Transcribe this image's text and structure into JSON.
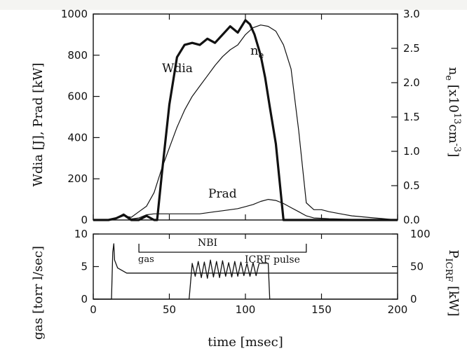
{
  "chart_data": [
    {
      "panel": "upper",
      "type": "line",
      "xlabel": "time [msec]",
      "xlim": [
        0,
        200
      ],
      "xticks": [
        0,
        50,
        100,
        150,
        200
      ],
      "ylabel_left": "Wdia [J],  Prad [kW]",
      "ylim_left": [
        0,
        1000
      ],
      "yticks_left": [
        0,
        200,
        400,
        600,
        800,
        1000
      ],
      "ylabel_right": "ne [x10^13 cm^-3]",
      "ylabel_right_parts": {
        "base": "n",
        "sub": "e",
        "mid": " [x10",
        "sup1": "13",
        "unit": "cm",
        "sup2": "-3",
        "end": "]"
      },
      "ylim_right": [
        0,
        3.0
      ],
      "yticks_right": [
        "0.0",
        "0.5",
        "1.0",
        "1.5",
        "2.0",
        "2.5",
        "3.0"
      ],
      "grid": false,
      "annotations": [
        {
          "text": "Wdia",
          "series": "Wdia"
        },
        {
          "text": "Prad",
          "series": "Prad"
        },
        {
          "text_base": "n",
          "text_sub": "e",
          "series": "ne"
        }
      ],
      "series": [
        {
          "name": "Wdia",
          "axis": "left",
          "style": "thick",
          "x": [
            0,
            10,
            15,
            20,
            25,
            30,
            35,
            40,
            42,
            45,
            50,
            55,
            60,
            65,
            70,
            75,
            80,
            85,
            90,
            95,
            100,
            103,
            106,
            110,
            113,
            116,
            120,
            125,
            130,
            135,
            140,
            145,
            150,
            155,
            160,
            165,
            170,
            175,
            180,
            185,
            190,
            195,
            200
          ],
          "y": [
            0,
            0,
            8,
            25,
            0,
            0,
            20,
            0,
            0,
            220,
            560,
            790,
            850,
            860,
            850,
            880,
            860,
            900,
            940,
            910,
            970,
            950,
            900,
            800,
            690,
            550,
            370,
            0,
            0,
            0,
            0,
            0,
            0,
            0,
            0,
            0,
            0,
            0,
            0,
            0,
            0,
            0,
            0
          ]
        },
        {
          "name": "ne",
          "axis": "right",
          "style": "thin",
          "x": [
            0,
            10,
            15,
            20,
            25,
            30,
            35,
            40,
            45,
            50,
            55,
            60,
            65,
            70,
            75,
            80,
            85,
            90,
            95,
            100,
            105,
            110,
            115,
            120,
            125,
            130,
            135,
            140,
            145,
            150,
            155,
            160,
            165,
            170,
            175,
            180,
            185,
            190,
            195,
            200
          ],
          "y": [
            0.0,
            0.0,
            0.02,
            0.06,
            0.04,
            0.12,
            0.2,
            0.4,
            0.75,
            1.05,
            1.35,
            1.6,
            1.8,
            1.95,
            2.1,
            2.25,
            2.38,
            2.48,
            2.55,
            2.7,
            2.8,
            2.84,
            2.82,
            2.75,
            2.55,
            2.2,
            1.3,
            0.25,
            0.15,
            0.15,
            0.12,
            0.1,
            0.08,
            0.06,
            0.05,
            0.04,
            0.03,
            0.02,
            0.01,
            0.0
          ]
        },
        {
          "name": "Prad",
          "axis": "left",
          "style": "thin",
          "x": [
            0,
            10,
            15,
            20,
            25,
            30,
            35,
            40,
            45,
            50,
            55,
            60,
            65,
            70,
            75,
            80,
            85,
            90,
            95,
            100,
            105,
            110,
            115,
            120,
            125,
            130,
            135,
            140,
            145,
            150,
            155,
            160,
            165,
            170,
            175,
            180,
            185,
            190,
            195,
            200
          ],
          "y": [
            0,
            0,
            10,
            30,
            5,
            10,
            25,
            30,
            30,
            30,
            30,
            30,
            30,
            30,
            35,
            40,
            45,
            50,
            55,
            65,
            75,
            90,
            100,
            95,
            80,
            60,
            40,
            20,
            10,
            8,
            6,
            5,
            4,
            3,
            3,
            2,
            2,
            2,
            1,
            1
          ]
        }
      ]
    },
    {
      "panel": "lower",
      "type": "line",
      "xlabel": "time [msec]",
      "xlim": [
        0,
        200
      ],
      "xticks": [
        0,
        50,
        100,
        150,
        200
      ],
      "ylabel_left": "gas [torr l/sec]",
      "ylim_left": [
        0,
        10
      ],
      "yticks_left": [
        0,
        5,
        10
      ],
      "ylabel_right": "PICRF [kW]",
      "ylabel_right_parts": {
        "base": "P",
        "sub": "ICRF",
        "end": " [kW]"
      },
      "ylim_right": [
        0,
        100
      ],
      "yticks_right": [
        0,
        50,
        100
      ],
      "grid": false,
      "annotations": [
        {
          "text": "NBI",
          "series": "NBI"
        },
        {
          "text": "ICRF pulse",
          "series": "ICRF pulse"
        },
        {
          "text": "gas",
          "series": "gas"
        }
      ],
      "series": [
        {
          "name": "NBI",
          "axis": "left",
          "style": "bar",
          "x": [
            30,
            30,
            140,
            140
          ],
          "y": [
            8.5,
            7.2,
            7.2,
            8.5
          ]
        },
        {
          "name": "gas",
          "axis": "left",
          "style": "step",
          "x": [
            0,
            10,
            12,
            12.8,
            13.5,
            14,
            16,
            22,
            30,
            45,
            45,
            60,
            80,
            100,
            114,
            120,
            140,
            200
          ],
          "y": [
            0,
            0,
            0,
            7.2,
            8.5,
            6.0,
            4.8,
            4.0,
            4.0,
            4.0,
            4.0,
            4.0,
            4.0,
            4.0,
            4.0,
            4.0,
            4.0,
            4.0
          ]
        },
        {
          "name": "ICRF pulse",
          "axis": "right",
          "style": "pulse",
          "x": [
            0,
            63,
            65,
            67,
            69,
            71,
            73,
            75,
            77,
            79,
            81,
            83,
            85,
            87,
            89,
            91,
            93,
            95,
            97,
            99,
            101,
            103,
            105,
            107,
            109,
            111,
            113,
            115,
            116,
            118,
            200
          ],
          "y": [
            0,
            0,
            55,
            35,
            58,
            33,
            57,
            32,
            60,
            34,
            58,
            33,
            59,
            35,
            56,
            34,
            58,
            35,
            57,
            36,
            55,
            35,
            56,
            36,
            55,
            55,
            55,
            55,
            0,
            0,
            0
          ]
        }
      ]
    }
  ]
}
